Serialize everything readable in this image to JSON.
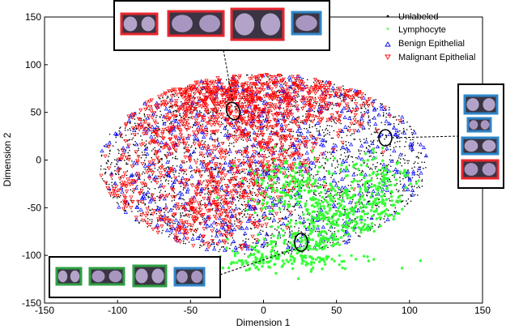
{
  "chart_data": {
    "type": "scatter",
    "title": "",
    "xlabel": "Dimension 1",
    "ylabel": "Dimension 2",
    "xlim": [
      -150,
      150
    ],
    "ylim": [
      -150,
      150
    ],
    "xticks": [
      "-150",
      "-100",
      "-50",
      "0",
      "50",
      "100",
      "150"
    ],
    "yticks": [
      "150",
      "100",
      "50",
      "0",
      "-50",
      "-100",
      "-150"
    ],
    "grid": false,
    "legend_position": "top-right",
    "series": [
      {
        "name": "Unlabeled",
        "marker": "dot",
        "color": "#000000"
      },
      {
        "name": "Lymphocyte",
        "marker": "star",
        "color": "#33ff33"
      },
      {
        "name": "Benign Epithelial",
        "marker": "triangle-up",
        "color": "#0000ff"
      },
      {
        "name": "Malignant Epithelial",
        "marker": "triangle-down",
        "color": "#ff0000"
      }
    ],
    "annotation_ellipses": [
      {
        "x": -18,
        "y": 52,
        "target": "top-inset"
      },
      {
        "x": 87,
        "y": 24,
        "target": "right-inset"
      },
      {
        "x": 30,
        "y": -87,
        "target": "bottom-left-inset"
      }
    ],
    "insets": [
      {
        "id": "top-inset",
        "thumbnail_borders": [
          "#e8262e",
          "#e8262e",
          "#e8262e",
          "#2f86c8"
        ]
      },
      {
        "id": "right-inset",
        "thumbnail_borders": [
          "#2f86c8",
          "#2f86c8",
          "#2f86c8",
          "#e8262e"
        ]
      },
      {
        "id": "bottom-left-inset",
        "thumbnail_borders": [
          "#2ea043",
          "#2ea043",
          "#2ea043",
          "#2f86c8"
        ]
      }
    ]
  }
}
